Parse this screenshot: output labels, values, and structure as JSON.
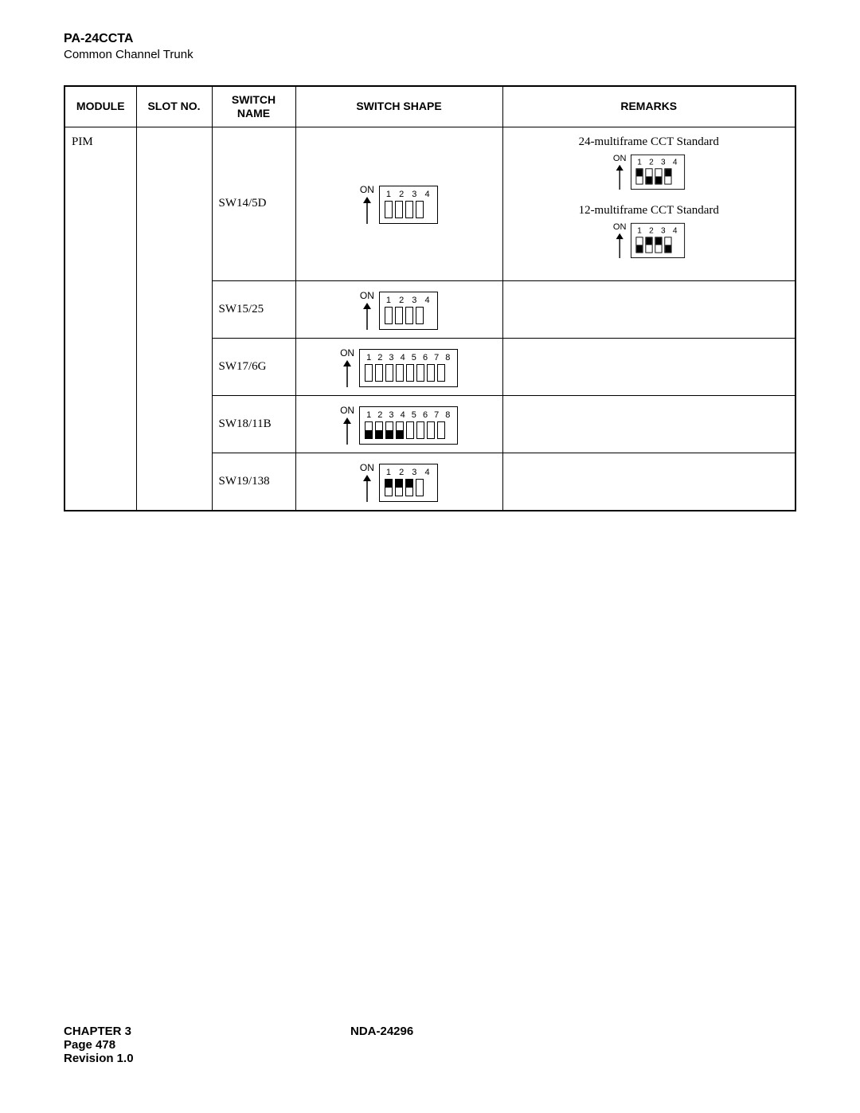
{
  "header": {
    "title": "PA-24CCTA",
    "subtitle": "Common Channel Trunk"
  },
  "table": {
    "headers": {
      "module": "MODULE",
      "slot": "SLOT NO.",
      "swname": "SWITCH\nNAME",
      "shape": "SWITCH SHAPE",
      "remarks": "REMARKS"
    },
    "module_value": "PIM",
    "on_label": "ON",
    "rows": [
      {
        "swname": "SW14/5D",
        "dip": {
          "count": 4,
          "positions": [
            "empty",
            "empty",
            "empty",
            "empty"
          ]
        },
        "remarks": [
          {
            "text": "24-multiframe CCT Standard",
            "dip": {
              "count": 4,
              "positions": [
                "up",
                "dn",
                "dn",
                "up"
              ]
            }
          },
          {
            "text": "12-multiframe CCT Standard",
            "dip": {
              "count": 4,
              "positions": [
                "dn",
                "up",
                "up",
                "dn"
              ]
            }
          }
        ]
      },
      {
        "swname": "SW15/25",
        "dip": {
          "count": 4,
          "positions": [
            "empty",
            "empty",
            "empty",
            "empty"
          ]
        },
        "remarks": []
      },
      {
        "swname": "SW17/6G",
        "dip": {
          "count": 8,
          "positions": [
            "empty",
            "empty",
            "empty",
            "empty",
            "empty",
            "empty",
            "empty",
            "empty"
          ]
        },
        "remarks": []
      },
      {
        "swname": "SW18/11B",
        "dip": {
          "count": 8,
          "positions": [
            "dn",
            "dn",
            "dn",
            "dn",
            "empty",
            "empty",
            "empty",
            "empty"
          ]
        },
        "remarks": []
      },
      {
        "swname": "SW19/138",
        "dip": {
          "count": 4,
          "positions": [
            "up",
            "up",
            "up",
            "empty"
          ]
        },
        "remarks": []
      }
    ]
  },
  "footer": {
    "chapter": "CHAPTER 3",
    "doc": "NDA-24296",
    "page": "Page 478",
    "rev": "Revision 1.0"
  },
  "colors": {
    "border": "#000000",
    "bg": "#ffffff",
    "text": "#000000"
  }
}
